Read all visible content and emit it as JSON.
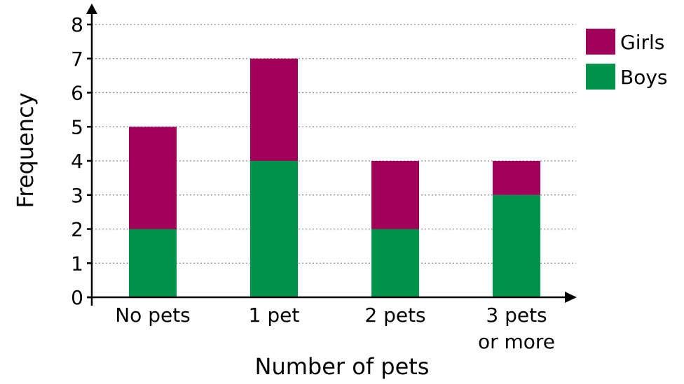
{
  "chart_data": {
    "type": "bar",
    "stacked": true,
    "categories": [
      [
        "No pets"
      ],
      [
        "1 pet"
      ],
      [
        "2 pets"
      ],
      [
        "3 pets",
        "or more"
      ]
    ],
    "series": [
      {
        "name": "Boys",
        "color": "#00944a",
        "values": [
          2,
          4,
          2,
          3
        ]
      },
      {
        "name": "Girls",
        "color": "#a0005a",
        "values": [
          3,
          3,
          2,
          1
        ]
      }
    ],
    "legend_order": [
      "Girls",
      "Boys"
    ],
    "legend_position": "top-right",
    "title": "",
    "xlabel": "Number of pets",
    "ylabel": "Frequency",
    "ylim": [
      0,
      8
    ],
    "yticks": [
      0,
      1,
      2,
      3,
      4,
      5,
      6,
      7,
      8
    ],
    "grid": true
  }
}
